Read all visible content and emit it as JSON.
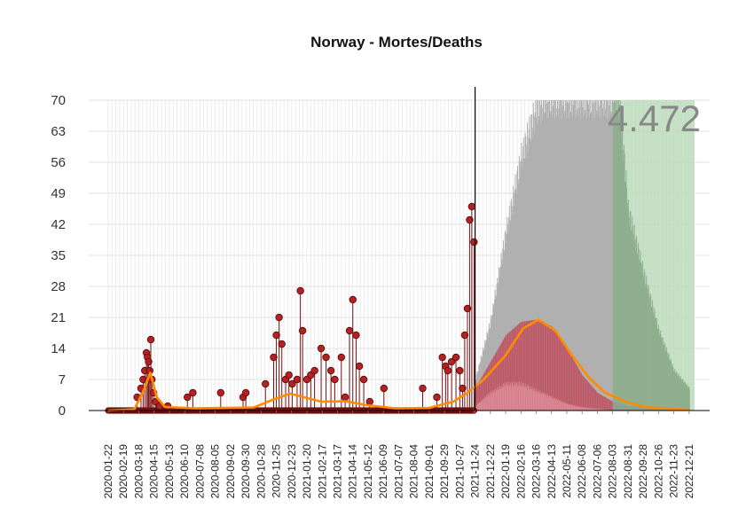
{
  "chart_data": {
    "type": "scatter",
    "title": "Norway - Mortes/Deaths",
    "xlabel": "",
    "ylabel": "",
    "ylim": [
      0,
      70
    ],
    "y_ticks": [
      "0",
      "7",
      "14",
      "21",
      "28",
      "35",
      "42",
      "49",
      "56",
      "63",
      "70"
    ],
    "x_ticks": [
      "2020-01-22",
      "2020-02-19",
      "2020-03-18",
      "2020-04-15",
      "2020-05-13",
      "2020-06-10",
      "2020-07-08",
      "2020-08-05",
      "2020-09-02",
      "2020-09-30",
      "2020-10-28",
      "2020-11-25",
      "2020-12-23",
      "2021-01-20",
      "2021-02-17",
      "2021-03-17",
      "2021-04-14",
      "2021-05-12",
      "2021-06-09",
      "2021-07-07",
      "2021-08-04",
      "2021-09-01",
      "2021-09-29",
      "2021-10-27",
      "2021-11-24",
      "2021-12-22",
      "2022-01-19",
      "2022-02-16",
      "2022-03-16",
      "2022-04-13",
      "2022-05-11",
      "2022-06-08",
      "2022-07-06",
      "2022-08-03",
      "2022-08-31",
      "2022-09-28",
      "2022-10-26",
      "2022-11-23",
      "2022-12-21"
    ],
    "annotation": "4.472",
    "grid": true,
    "colors": {
      "points": "#b22222",
      "point_edge": "#5a0a0a",
      "stems": "#7a1010",
      "smooth_line": "#ff8c00",
      "forecast_upper": "#b0b0b0",
      "forecast_mid": "#c05060",
      "forecast_lower": "#e08a96",
      "after_peak_band": "#bcdcbc"
    },
    "series": [
      {
        "name": "",
        "kind": "observed_daily_deaths",
        "points": [
          [
            "2020-03-15",
            3
          ],
          [
            "2020-03-22",
            5
          ],
          [
            "2020-03-26",
            7
          ],
          [
            "2020-03-29",
            9
          ],
          [
            "2020-04-01",
            13
          ],
          [
            "2020-04-03",
            12
          ],
          [
            "2020-04-05",
            11
          ],
          [
            "2020-04-07",
            9
          ],
          [
            "2020-04-09",
            16
          ],
          [
            "2020-04-11",
            7
          ],
          [
            "2020-04-14",
            4
          ],
          [
            "2020-04-18",
            2
          ],
          [
            "2020-04-25",
            1
          ],
          [
            "2020-05-10",
            1
          ],
          [
            "2020-06-15",
            3
          ],
          [
            "2020-06-25",
            4
          ],
          [
            "2020-08-15",
            4
          ],
          [
            "2020-09-25",
            3
          ],
          [
            "2020-09-30",
            4
          ],
          [
            "2020-11-05",
            6
          ],
          [
            "2020-11-20",
            12
          ],
          [
            "2020-11-25",
            17
          ],
          [
            "2020-11-30",
            21
          ],
          [
            "2020-12-05",
            15
          ],
          [
            "2020-12-12",
            7
          ],
          [
            "2020-12-18",
            8
          ],
          [
            "2020-12-24",
            6
          ],
          [
            "2021-01-02",
            7
          ],
          [
            "2021-01-08",
            27
          ],
          [
            "2021-01-12",
            18
          ],
          [
            "2021-01-20",
            7
          ],
          [
            "2021-01-27",
            8
          ],
          [
            "2021-02-03",
            9
          ],
          [
            "2021-02-15",
            14
          ],
          [
            "2021-02-24",
            12
          ],
          [
            "2021-03-05",
            9
          ],
          [
            "2021-03-12",
            7
          ],
          [
            "2021-03-24",
            12
          ],
          [
            "2021-03-31",
            3
          ],
          [
            "2021-04-08",
            18
          ],
          [
            "2021-04-14",
            25
          ],
          [
            "2021-04-20",
            17
          ],
          [
            "2021-04-26",
            10
          ],
          [
            "2021-05-04",
            7
          ],
          [
            "2021-05-15",
            2
          ],
          [
            "2021-06-10",
            5
          ],
          [
            "2021-08-20",
            5
          ],
          [
            "2021-09-15",
            3
          ],
          [
            "2021-09-25",
            12
          ],
          [
            "2021-10-01",
            10
          ],
          [
            "2021-10-05",
            9
          ],
          [
            "2021-10-12",
            11
          ],
          [
            "2021-10-20",
            12
          ],
          [
            "2021-10-27",
            9
          ],
          [
            "2021-11-01",
            5
          ],
          [
            "2021-11-05",
            17
          ],
          [
            "2021-11-10",
            23
          ],
          [
            "2021-11-14",
            43
          ],
          [
            "2021-11-18",
            46
          ],
          [
            "2021-11-22",
            38
          ]
        ]
      },
      {
        "name": "",
        "kind": "smoothed_curve",
        "points": [
          [
            "2020-01-22",
            0
          ],
          [
            "2020-03-10",
            0.3
          ],
          [
            "2020-03-25",
            4
          ],
          [
            "2020-04-08",
            8.5
          ],
          [
            "2020-04-20",
            3
          ],
          [
            "2020-05-05",
            0.8
          ],
          [
            "2020-07-01",
            0.5
          ],
          [
            "2020-10-15",
            0.7
          ],
          [
            "2020-11-20",
            2.5
          ],
          [
            "2020-12-20",
            3.8
          ],
          [
            "2021-01-15",
            3.0
          ],
          [
            "2021-02-15",
            2.0
          ],
          [
            "2021-04-01",
            2.1
          ],
          [
            "2021-05-10",
            1.2
          ],
          [
            "2021-07-01",
            0.5
          ],
          [
            "2021-09-01",
            0.6
          ],
          [
            "2021-10-15",
            2.0
          ],
          [
            "2021-11-10",
            4.0
          ],
          [
            "2021-12-10",
            7.0
          ],
          [
            "2022-01-19",
            12.5
          ],
          [
            "2022-02-20",
            18.5
          ],
          [
            "2022-03-20",
            20.5
          ],
          [
            "2022-04-20",
            18.0
          ],
          [
            "2022-05-20",
            12.5
          ],
          [
            "2022-06-20",
            7.5
          ],
          [
            "2022-07-20",
            4.0
          ],
          [
            "2022-08-31",
            1.8
          ],
          [
            "2022-10-01",
            0.8
          ],
          [
            "2022-11-23",
            0.3
          ],
          [
            "2022-12-21",
            0.2
          ]
        ]
      },
      {
        "name": "",
        "kind": "forecast_upper_band",
        "points": [
          [
            "2021-11-24",
            7
          ],
          [
            "2021-12-22",
            20
          ],
          [
            "2022-01-19",
            40
          ],
          [
            "2022-02-16",
            57
          ],
          [
            "2022-03-16",
            68
          ],
          [
            "2022-04-01",
            70
          ],
          [
            "2022-08-15",
            70
          ],
          [
            "2022-08-31",
            45
          ],
          [
            "2022-09-28",
            31
          ],
          [
            "2022-10-26",
            18
          ],
          [
            "2022-11-23",
            9
          ],
          [
            "2022-12-21",
            5
          ]
        ]
      },
      {
        "name": "",
        "kind": "forecast_mid_band",
        "points": [
          [
            "2021-11-24",
            5
          ],
          [
            "2021-12-22",
            11
          ],
          [
            "2022-01-19",
            17
          ],
          [
            "2022-02-16",
            20
          ],
          [
            "2022-03-16",
            20.5
          ],
          [
            "2022-04-13",
            19
          ],
          [
            "2022-05-11",
            14
          ],
          [
            "2022-06-08",
            8
          ],
          [
            "2022-07-06",
            4
          ],
          [
            "2022-08-03",
            2
          ],
          [
            "2022-08-31",
            1
          ],
          [
            "2022-12-21",
            0.5
          ]
        ]
      },
      {
        "name": "",
        "kind": "forecast_lower_band",
        "points": [
          [
            "2021-11-24",
            1
          ],
          [
            "2021-12-22",
            4
          ],
          [
            "2022-01-19",
            6
          ],
          [
            "2022-02-16",
            6
          ],
          [
            "2022-03-16",
            4.5
          ],
          [
            "2022-04-13",
            3
          ],
          [
            "2022-05-11",
            1.5
          ],
          [
            "2022-06-08",
            0.7
          ],
          [
            "2022-07-06",
            0.4
          ],
          [
            "2022-08-03",
            0.1
          ]
        ]
      }
    ],
    "markers": {
      "vertical_line_date": "2021-11-24",
      "green_band_start": "2022-08-03",
      "green_band_end": "2022-12-31"
    }
  }
}
